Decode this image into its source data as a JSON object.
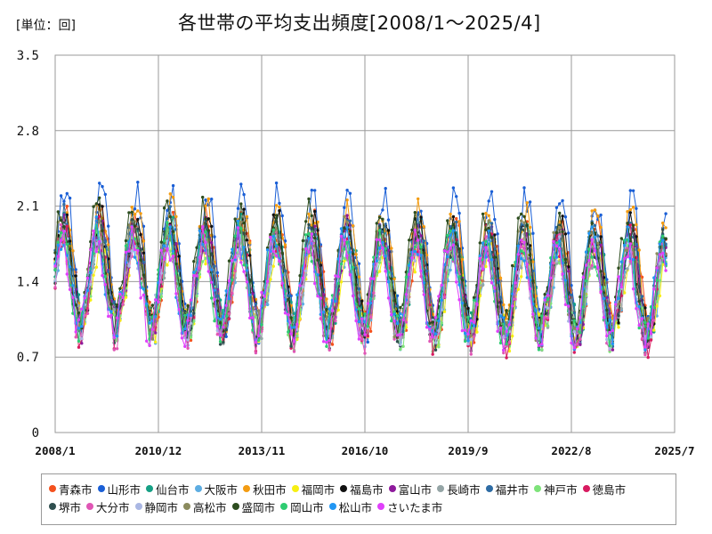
{
  "unit_label": "[単位：回]",
  "title": "各世帯の平均支出頻度[2008/1～2025/4]",
  "chart_data": {
    "type": "line",
    "title": "各世帯の平均支出頻度[2008/1～2025/4]",
    "unit": "回",
    "x_range": [
      "2008/1",
      "2025/7"
    ],
    "x_ticks": [
      "2008/1",
      "2010/12",
      "2013/11",
      "2016/10",
      "2019/9",
      "2022/8",
      "2025/7"
    ],
    "ylim": [
      0,
      3.5
    ],
    "y_ticks": [
      0,
      0.7,
      1.4,
      2.1,
      2.8,
      3.5
    ],
    "grid": true,
    "legend_position": "bottom",
    "series": [
      {
        "name": "青森市",
        "color": "#f4511e",
        "base": 1.5,
        "amp": 0.5,
        "phase": 0.0
      },
      {
        "name": "山形市",
        "color": "#1a5fd6",
        "base": 1.62,
        "amp": 0.62,
        "phase": 0.3
      },
      {
        "name": "仙台市",
        "color": "#16a085",
        "base": 1.48,
        "amp": 0.45,
        "phase": 0.6
      },
      {
        "name": "大阪市",
        "color": "#5dade2",
        "base": 1.4,
        "amp": 0.42,
        "phase": 0.9
      },
      {
        "name": "秋田市",
        "color": "#f39c12",
        "base": 1.58,
        "amp": 0.52,
        "phase": 1.2
      },
      {
        "name": "福岡市",
        "color": "#f7ef13",
        "base": 1.35,
        "amp": 0.4,
        "phase": 1.5
      },
      {
        "name": "福島市",
        "color": "#111111",
        "base": 1.52,
        "amp": 0.48,
        "phase": 1.8
      },
      {
        "name": "富山市",
        "color": "#8e1a9c",
        "base": 1.45,
        "amp": 0.47,
        "phase": 2.1
      },
      {
        "name": "長崎市",
        "color": "#95a5a6",
        "base": 1.38,
        "amp": 0.4,
        "phase": 2.4
      },
      {
        "name": "福井市",
        "color": "#2e6ca4",
        "base": 1.5,
        "amp": 0.46,
        "phase": 2.7
      },
      {
        "name": "神戸市",
        "color": "#7ee37a",
        "base": 1.36,
        "amp": 0.44,
        "phase": 3.0
      },
      {
        "name": "徳島市",
        "color": "#d81b60",
        "base": 1.4,
        "amp": 0.48,
        "phase": 3.3
      },
      {
        "name": "堺市",
        "color": "#2f4f4f",
        "base": 1.42,
        "amp": 0.45,
        "phase": 3.6
      },
      {
        "name": "大分市",
        "color": "#e056b5",
        "base": 1.35,
        "amp": 0.45,
        "phase": 3.9
      },
      {
        "name": "静岡市",
        "color": "#aab7e3",
        "base": 1.4,
        "amp": 0.4,
        "phase": 4.2
      },
      {
        "name": "高松市",
        "color": "#8b8b5e",
        "base": 1.45,
        "amp": 0.46,
        "phase": 4.5
      },
      {
        "name": "盛岡市",
        "color": "#2d4d1f",
        "base": 1.55,
        "amp": 0.52,
        "phase": 4.8
      },
      {
        "name": "岡山市",
        "color": "#2ecc71",
        "base": 1.4,
        "amp": 0.42,
        "phase": 5.1
      },
      {
        "name": "松山市",
        "color": "#2196f3",
        "base": 1.42,
        "amp": 0.43,
        "phase": 5.4
      },
      {
        "name": "さいたま市",
        "color": "#e040fb",
        "base": 1.38,
        "amp": 0.42,
        "phase": 5.7
      }
    ]
  }
}
